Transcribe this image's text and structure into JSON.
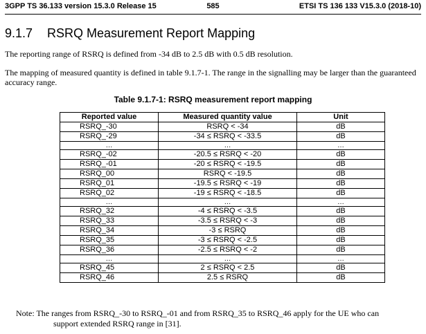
{
  "header": {
    "left": "3GPP TS 36.133 version 15.3.0 Release 15",
    "center": "585",
    "right": "ETSI TS 136 133 V15.3.0 (2018-10)"
  },
  "section": {
    "number": "9.1.7",
    "title": "RSRQ Measurement Report Mapping"
  },
  "paragraphs": [
    "The reporting range of RSRQ is defined from -34 dB to 2.5 dB with 0.5 dB resolution.",
    "The mapping of measured quantity is defined in table 9.1.7-1. The range in the signalling may be larger than the guaranteed accuracy range."
  ],
  "table": {
    "caption": "Table 9.1.7-1: RSRQ measurement report mapping",
    "columns": [
      "Reported value",
      "Measured quantity value",
      "Unit"
    ],
    "rows": [
      [
        "RSRQ_-30",
        "RSRQ < -34",
        "dB"
      ],
      [
        "RSRQ_-29",
        "-34 ≤ RSRQ < -33.5",
        "dB"
      ],
      [
        "…",
        "…",
        "…"
      ],
      [
        "RSRQ_-02",
        "-20.5 ≤ RSRQ < -20",
        "dB"
      ],
      [
        "RSRQ_-01",
        "-20 ≤ RSRQ < -19.5",
        "dB"
      ],
      [
        "RSRQ_00",
        "RSRQ < -19.5",
        "dB"
      ],
      [
        "RSRQ_01",
        "-19.5 ≤ RSRQ < -19",
        "dB"
      ],
      [
        "RSRQ_02",
        "-19 ≤ RSRQ < -18.5",
        "dB"
      ],
      [
        "…",
        "…",
        "…"
      ],
      [
        "RSRQ_32",
        "-4 ≤ RSRQ < -3.5",
        "dB"
      ],
      [
        "RSRQ_33",
        "-3.5 ≤ RSRQ < -3",
        "dB"
      ],
      [
        "RSRQ_34",
        "-3 ≤ RSRQ",
        "dB"
      ],
      [
        "RSRQ_35",
        "-3 ≤ RSRQ < -2.5",
        "dB"
      ],
      [
        "RSRQ_36",
        "-2.5 ≤ RSRQ < -2",
        "dB"
      ],
      [
        "…",
        "…",
        "…"
      ],
      [
        "RSRQ_45",
        "2 ≤ RSRQ < 2.5",
        "dB"
      ],
      [
        "RSRQ_46",
        "2.5 ≤ RSRQ",
        "dB"
      ]
    ]
  },
  "note": {
    "line1": "Note: The ranges from RSRQ_-30 to RSRQ_-01 and from RSRQ_35 to RSRQ_46 apply for the UE who can",
    "line2": "support extended RSRQ range in [31]."
  }
}
